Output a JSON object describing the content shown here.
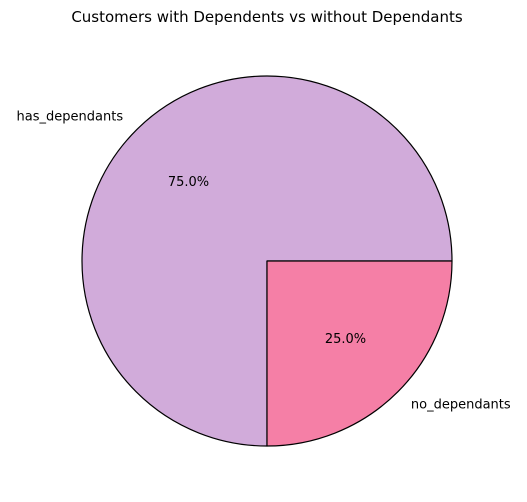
{
  "chart_data": {
    "type": "pie",
    "title": "Customers with Dependents vs without Dependants",
    "slices": [
      {
        "label": "has_dependants",
        "value": 75.0,
        "pct_label": "75.0%",
        "color": "#D1ABDA"
      },
      {
        "label": "no_dependants",
        "value": 25.0,
        "pct_label": "25.0%",
        "color": "#F57FA6"
      }
    ],
    "edge_color": "#000000",
    "start_angle": "0 degrees (east), counter-clockwise"
  }
}
